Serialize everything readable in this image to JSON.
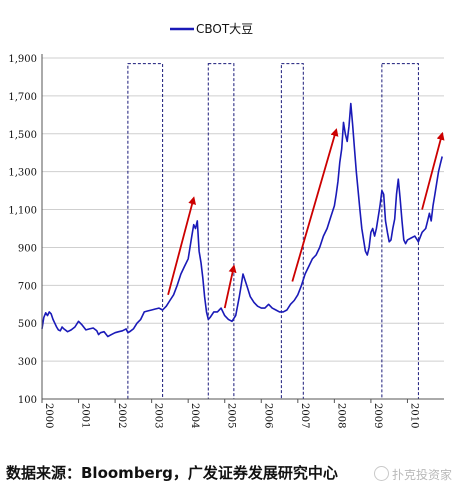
{
  "chart_data": {
    "type": "line",
    "legend": {
      "label": "CBOT大豆",
      "position": "top-center",
      "color": "#1a1ab8"
    },
    "ylim": [
      100,
      1900
    ],
    "yticks": [
      100,
      300,
      500,
      700,
      900,
      1100,
      1300,
      1500,
      1700,
      1900
    ],
    "ytick_labels": [
      "100",
      "300",
      "500",
      "700",
      "900",
      "1,100",
      "1,300",
      "1,500",
      "1,700",
      "1,900"
    ],
    "xlim": [
      2000.0,
      2011.0
    ],
    "xtick_labels": [
      "2000",
      "2001",
      "2002",
      "2003",
      "2004",
      "2005",
      "2006",
      "2007",
      "2008",
      "2009",
      "2010"
    ],
    "series": [
      {
        "name": "CBOT大豆",
        "color": "#1a1ab8",
        "x": [
          2000.0,
          2000.05,
          2000.1,
          2000.15,
          2000.2,
          2000.25,
          2000.3,
          2000.35,
          2000.4,
          2000.45,
          2000.5,
          2000.55,
          2000.6,
          2000.7,
          2000.8,
          2000.9,
          2001.0,
          2001.1,
          2001.2,
          2001.3,
          2001.4,
          2001.5,
          2001.55,
          2001.6,
          2001.7,
          2001.8,
          2001.9,
          2002.0,
          2002.1,
          2002.2,
          2002.3,
          2002.35,
          2002.4,
          2002.5,
          2002.6,
          2002.7,
          2002.8,
          2002.9,
          2003.0,
          2003.1,
          2003.2,
          2003.3,
          2003.4,
          2003.5,
          2003.6,
          2003.7,
          2003.8,
          2003.9,
          2004.0,
          2004.05,
          2004.1,
          2004.15,
          2004.2,
          2004.25,
          2004.3,
          2004.35,
          2004.4,
          2004.45,
          2004.5,
          2004.55,
          2004.6,
          2004.7,
          2004.8,
          2004.9,
          2005.0,
          2005.1,
          2005.2,
          2005.3,
          2005.4,
          2005.45,
          2005.5,
          2005.6,
          2005.7,
          2005.8,
          2005.9,
          2006.0,
          2006.1,
          2006.2,
          2006.3,
          2006.4,
          2006.5,
          2006.6,
          2006.7,
          2006.8,
          2006.9,
          2007.0,
          2007.1,
          2007.2,
          2007.3,
          2007.4,
          2007.5,
          2007.6,
          2007.7,
          2007.8,
          2007.9,
          2008.0,
          2008.05,
          2008.1,
          2008.15,
          2008.2,
          2008.25,
          2008.3,
          2008.35,
          2008.4,
          2008.45,
          2008.5,
          2008.55,
          2008.6,
          2008.65,
          2008.7,
          2008.75,
          2008.8,
          2008.85,
          2008.9,
          2008.95,
          2009.0,
          2009.05,
          2009.1,
          2009.15,
          2009.2,
          2009.25,
          2009.3,
          2009.35,
          2009.4,
          2009.45,
          2009.5,
          2009.55,
          2009.6,
          2009.65,
          2009.7,
          2009.75,
          2009.8,
          2009.85,
          2009.9,
          2009.95,
          2010.0,
          2010.1,
          2010.2,
          2010.3,
          2010.4,
          2010.5,
          2010.55,
          2010.6,
          2010.65,
          2010.7,
          2010.75,
          2010.8,
          2010.85,
          2010.9,
          2010.95
        ],
        "values": [
          470,
          530,
          555,
          540,
          560,
          550,
          520,
          500,
          480,
          465,
          460,
          480,
          470,
          455,
          465,
          480,
          510,
          490,
          465,
          470,
          475,
          460,
          440,
          450,
          455,
          430,
          440,
          450,
          455,
          460,
          470,
          450,
          455,
          470,
          500,
          520,
          560,
          565,
          570,
          575,
          580,
          570,
          590,
          620,
          650,
          700,
          760,
          800,
          840,
          900,
          960,
          1020,
          1000,
          1040,
          880,
          820,
          740,
          640,
          560,
          520,
          530,
          560,
          560,
          580,
          540,
          520,
          510,
          540,
          640,
          700,
          760,
          700,
          640,
          610,
          590,
          580,
          580,
          600,
          580,
          570,
          560,
          560,
          570,
          600,
          620,
          650,
          700,
          760,
          800,
          840,
          860,
          900,
          960,
          1000,
          1060,
          1120,
          1180,
          1250,
          1350,
          1420,
          1560,
          1500,
          1460,
          1540,
          1660,
          1550,
          1420,
          1300,
          1200,
          1100,
          1000,
          940,
          880,
          860,
          900,
          980,
          1000,
          960,
          1000,
          1060,
          1120,
          1200,
          1180,
          1040,
          980,
          930,
          940,
          1000,
          1050,
          1180,
          1260,
          1160,
          1040,
          940,
          920,
          940,
          950,
          960,
          930,
          980,
          1000,
          1040,
          1080,
          1040,
          1120,
          1180,
          1240,
          1300,
          1340,
          1380
        ]
      }
    ],
    "highlight_ranges": [
      {
        "x": [
          2002.35,
          2003.3
        ],
        "ylim": [
          100,
          1870
        ]
      },
      {
        "x": [
          2004.55,
          2005.25
        ],
        "ylim": [
          100,
          1870
        ]
      },
      {
        "x": [
          2006.55,
          2007.15
        ],
        "ylim": [
          100,
          1870
        ]
      },
      {
        "x": [
          2009.3,
          2010.3
        ],
        "ylim": [
          100,
          1870
        ]
      }
    ],
    "arrows": [
      {
        "from": [
          2003.45,
          650
        ],
        "to": [
          2004.15,
          1160
        ],
        "color": "#cc0000"
      },
      {
        "from": [
          2005.0,
          580
        ],
        "to": [
          2005.25,
          800
        ],
        "color": "#cc0000"
      },
      {
        "from": [
          2006.85,
          720
        ],
        "to": [
          2008.05,
          1520
        ],
        "color": "#cc0000"
      },
      {
        "from": [
          2010.4,
          1100
        ],
        "to": [
          2010.95,
          1500
        ],
        "color": "#cc0000"
      }
    ]
  },
  "source_text": "数据来源：Bloomberg，广发证券发展研究中心",
  "watermark_text": "扑克投资家"
}
